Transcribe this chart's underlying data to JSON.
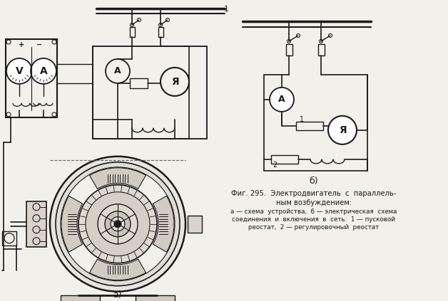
{
  "bg_color": "#f2f0eb",
  "line_color": "#1a1a1a",
  "fig_label_a": "а)",
  "fig_label_b": "б)",
  "caption_line1": "Фиг. 295.  Электродвигатель  с  параллель-",
  "caption_line2": "ным возбуждением:",
  "caption_line3": "а — схема  устройства,  б — электрическая  схема",
  "caption_line4": "соединения  и  включения  в  сеть:  1 — пусковой",
  "caption_line5": "реостат,  2 — регулировочный  реостат"
}
